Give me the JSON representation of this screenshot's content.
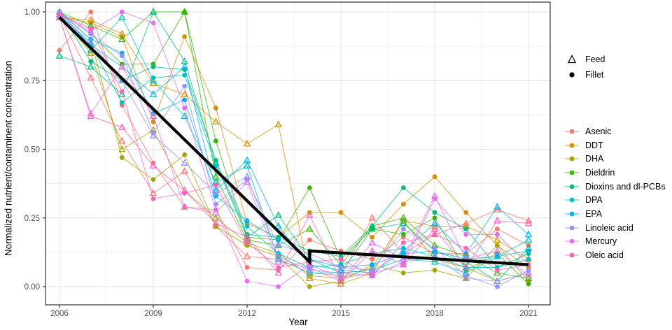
{
  "chart_data": {
    "type": "line",
    "title": "",
    "xlabel": "Year",
    "ylabel": "Normalized nutrient/contaminent concentration",
    "x_years": [
      2006,
      2007,
      2008,
      2009,
      2010,
      2011,
      2012,
      2013,
      2014,
      2015,
      2016,
      2017,
      2018,
      2019,
      2020,
      2021
    ],
    "x_ticks": [
      "2006",
      "2009",
      "2012",
      "2015",
      "2018",
      "2021"
    ],
    "x_tick_years": [
      2006,
      2009,
      2012,
      2015,
      2018,
      2021
    ],
    "x_minor_years": [
      2007.5,
      2010.5,
      2013.5,
      2016.5,
      2019.5
    ],
    "y_ticks": [
      "0.00",
      "0.25",
      "0.50",
      "0.75",
      "1.00"
    ],
    "y_tick_values": [
      0,
      0.25,
      0.5,
      0.75,
      1
    ],
    "y_minor_values": [
      0.125,
      0.375,
      0.625,
      0.875
    ],
    "ylim": [
      0,
      1
    ],
    "xlim": [
      2006,
      2021
    ],
    "grid": "on",
    "legend_position": "right",
    "shape_legend": [
      {
        "label": "Feed",
        "marker": "triangle-open"
      },
      {
        "label": "Fillet",
        "marker": "circle-filled"
      }
    ],
    "series": [
      {
        "name": "Asenic",
        "color": "#F8766D",
        "feed": [
          0.99,
          0.76,
          0.53,
          0.34,
          0.42,
          0.22,
          0.11,
          0.1,
          0.05,
          0.04,
          0.25,
          0.12,
          0.19,
          0.23,
          0.28,
          0.24
        ],
        "fillet": [
          0.86,
          1.0,
          0.66,
          0.45,
          0.29,
          0.28,
          0.07,
          0.06,
          0.17,
          0.13,
          0.1,
          0.18,
          0.12,
          0.12,
          0.21,
          0.15
        ]
      },
      {
        "name": "DDT",
        "color": "#D89000",
        "feed": [
          0.98,
          0.97,
          0.92,
          0.74,
          0.7,
          0.6,
          0.52,
          0.59,
          0.03,
          0.01,
          0.05,
          0.24,
          0.22,
          0.22,
          0.17,
          0.1
        ],
        "fillet": [
          0.98,
          0.96,
          0.91,
          0.6,
          0.91,
          0.65,
          0.23,
          0.18,
          0.27,
          0.27,
          0.18,
          0.3,
          0.4,
          0.27,
          0.15,
          0.07
        ]
      },
      {
        "name": "DHA",
        "color": "#A3A500",
        "feed": [
          0.99,
          0.85,
          0.5,
          0.57,
          0.35,
          0.25,
          0.16,
          0.12,
          0.04,
          0.03,
          0.07,
          0.24,
          0.1,
          0.07,
          0.02,
          0.05
        ],
        "fillet": [
          1.0,
          0.9,
          0.47,
          0.39,
          0.48,
          0.22,
          0.15,
          0.11,
          0.0,
          0.02,
          0.08,
          0.05,
          0.06,
          0.03,
          0.15,
          0.02
        ]
      },
      {
        "name": "Dieldrin",
        "color": "#39B600",
        "feed": [
          1.0,
          0.95,
          0.9,
          1.0,
          1.0,
          0.4,
          0.17,
          0.15,
          0.21,
          0.08,
          0.22,
          0.25,
          0.15,
          0.11,
          0.05,
          0.03
        ],
        "fillet": [
          1.0,
          0.92,
          0.81,
          0.81,
          1.0,
          0.53,
          0.18,
          0.17,
          0.36,
          0.1,
          0.21,
          0.19,
          0.25,
          0.06,
          0.12,
          0.01
        ]
      },
      {
        "name": "Dioxins and dl-PCBs",
        "color": "#00BF7D",
        "feed": [
          0.84,
          0.8,
          0.7,
          1.0,
          0.82,
          0.45,
          0.18,
          0.26,
          0.1,
          0.05,
          0.21,
          0.23,
          0.13,
          0.09,
          0.02,
          0.14
        ],
        "fillet": [
          1.0,
          0.82,
          0.75,
          0.8,
          0.79,
          0.46,
          0.19,
          0.18,
          0.13,
          0.11,
          0.22,
          0.36,
          0.27,
          0.21,
          0.07,
          0.12
        ]
      },
      {
        "name": "DPA",
        "color": "#00BFC4",
        "feed": [
          0.98,
          0.86,
          0.98,
          0.75,
          0.62,
          0.38,
          0.44,
          0.1,
          0.05,
          0.05,
          0.06,
          0.1,
          0.09,
          0.05,
          0.11,
          0.17
        ],
        "fillet": [
          1.0,
          0.88,
          0.67,
          0.76,
          0.77,
          0.44,
          0.22,
          0.12,
          0.07,
          0.08,
          0.12,
          0.14,
          0.11,
          0.07,
          0.07,
          0.1
        ]
      },
      {
        "name": "EPA",
        "color": "#00B0F6",
        "feed": [
          0.99,
          0.88,
          0.8,
          0.7,
          0.8,
          0.35,
          0.46,
          0.22,
          0.08,
          0.06,
          0.05,
          0.13,
          0.23,
          0.12,
          0.29,
          0.19
        ],
        "fillet": [
          1.0,
          0.9,
          0.85,
          0.63,
          0.68,
          0.33,
          0.24,
          0.17,
          0.1,
          0.07,
          0.08,
          0.12,
          0.13,
          0.1,
          0.11,
          0.13
        ]
      },
      {
        "name": "Linoleic acid",
        "color": "#9590FF",
        "feed": [
          0.99,
          0.89,
          0.75,
          0.55,
          0.45,
          0.34,
          0.4,
          0.11,
          0.06,
          0.05,
          0.04,
          0.09,
          0.11,
          0.03,
          0.02,
          0.05
        ],
        "fillet": [
          1.0,
          0.92,
          0.84,
          0.56,
          0.73,
          0.3,
          0.39,
          0.15,
          0.12,
          0.07,
          0.06,
          0.21,
          0.14,
          0.04,
          0.0,
          0.06
        ]
      },
      {
        "name": "Mercury",
        "color": "#E76BF3",
        "feed": [
          0.98,
          0.63,
          0.8,
          0.62,
          0.29,
          0.27,
          0.38,
          0.09,
          0.07,
          0.02,
          0.16,
          0.1,
          0.33,
          0.1,
          0.13,
          0.04
        ],
        "fillet": [
          0.99,
          0.93,
          1.0,
          0.96,
          0.65,
          0.28,
          0.02,
          0.0,
          0.08,
          0.03,
          0.05,
          0.08,
          0.32,
          0.19,
          0.19,
          0.08
        ]
      },
      {
        "name": "Oleic acid",
        "color": "#FF62BC",
        "feed": [
          0.98,
          0.62,
          0.58,
          0.44,
          0.35,
          0.23,
          0.18,
          0.05,
          0.26,
          0.02,
          0.13,
          0.08,
          0.21,
          0.07,
          0.24,
          0.23
        ],
        "fillet": [
          0.99,
          0.94,
          0.71,
          0.32,
          0.34,
          0.37,
          0.16,
          0.07,
          0.09,
          0.1,
          0.04,
          0.16,
          0.19,
          0.14,
          0.06,
          0.08
        ]
      }
    ],
    "trend": {
      "name": "overall-trend",
      "color": "#000000",
      "points": [
        [
          2006,
          0.98
        ],
        [
          2014,
          0.09
        ],
        [
          2014,
          0.13
        ],
        [
          2021,
          0.08
        ]
      ]
    },
    "panel": {
      "background": "#ffffff",
      "border_color": "#333333",
      "major_grid_color": "#e4e4e4",
      "minor_grid_color": "#f1f1f1",
      "tick_color": "#333333",
      "tick_label_color": "#4d4d4d"
    }
  }
}
